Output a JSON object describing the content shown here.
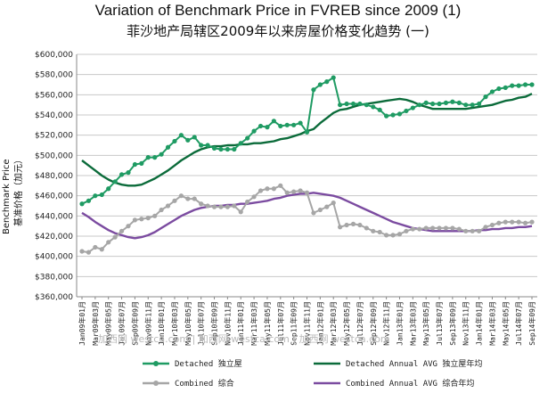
{
  "chart_data": {
    "type": "line",
    "title": "Variation of Benchmark Price in FVREB since 2009 (1)",
    "subtitle": "菲沙地产局辖区2009年以来房屋价格变化趋势 (一)",
    "ylabel_en": "Benchmark Price",
    "ylabel_cn": "基准价格（加元）",
    "ylim": [
      360000,
      600000
    ],
    "y_ticks": [
      "$360,000",
      "$380,000",
      "$400,000",
      "$420,000",
      "$440,000",
      "$460,000",
      "$480,000",
      "$500,000",
      "$520,000",
      "$540,000",
      "$560,000",
      "$580,000",
      "$600,000"
    ],
    "x": [
      "Jan09年01月",
      "Feb09年02月",
      "Mar09年03月",
      "Apr09年04月",
      "May09年05月",
      "Jun09年06月",
      "Jul09年07月",
      "Aug09年08月",
      "Sep09年09月",
      "Oct09年10月",
      "Nov09年11月",
      "Dec09年12月",
      "Jan10年01月",
      "Feb10年02月",
      "Mar10年03月",
      "Apr10年04月",
      "May10年05月",
      "Jun10年06月",
      "Jul10年07月",
      "Aug10年08月",
      "Sep10年09月",
      "Oct10年10月",
      "Nov10年11月",
      "Dec10年12月",
      "Jan11年01月",
      "Feb11年02月",
      "Mar11年03月",
      "Apr11年04月",
      "May11年05月",
      "Jun11年06月",
      "Jul11年07月",
      "Aug11年08月",
      "Sep11年09月",
      "Oct11年10月",
      "Nov11年11月",
      "Dec11年12月",
      "Jan12年01月",
      "Feb12年02月",
      "Mar12年03月",
      "Apr12年04月",
      "May12年05月",
      "Jun12年06月",
      "Jul12年07月",
      "Aug12年08月",
      "Sep12年09月",
      "Oct12年10月",
      "Nov12年11月",
      "Dec12年12月",
      "Jan13年01月",
      "Feb13年02月",
      "Mar13年03月",
      "Apr13年04月",
      "May13年05月",
      "Jun13年06月",
      "Jul13年07月",
      "Aug13年08月",
      "Sep13年09月",
      "Oct13年10月",
      "Nov13年11月",
      "Dec13年12月",
      "Jan14年01月",
      "Feb14年02月",
      "Mar14年03月",
      "Apr14年04月",
      "May14年05月",
      "Jun14年06月",
      "Jul14年07月",
      "Aug14年08月",
      "Sep14年09月"
    ],
    "x_tick_labels": [
      "Jan09年01月",
      "Mar09年03月",
      "May09年05月",
      "Jul09年07月",
      "Sep09年09月",
      "Nov09年11月",
      "Jan10年01月",
      "Mar10年03月",
      "May10年05月",
      "Jul10年07月",
      "Sep10年09月",
      "Nov10年11月",
      "Jan11年01月",
      "Mar11年03月",
      "May11年05月",
      "Jul11年07月",
      "Sep11年09月",
      "Nov11年11月",
      "Jan12年01月",
      "Mar12年03月",
      "May12年05月",
      "Jul12年07月",
      "Sep12年09月",
      "Nov12年11月",
      "Jan13年01月",
      "Mar13年03月",
      "May13年05月",
      "Jul13年07月",
      "Sep13年09月",
      "Nov13年11月",
      "Jan14年01月",
      "Mar14年03月",
      "May14年05月",
      "Jul14年07月",
      "Sep14年09月"
    ],
    "series": [
      {
        "name": "Detached 独立屋",
        "color": "#1f9b63",
        "markers": true,
        "values": [
          452000,
          455000,
          460000,
          461000,
          467000,
          474000,
          481000,
          483000,
          491000,
          492000,
          498000,
          498000,
          501000,
          508000,
          514000,
          520000,
          515000,
          518000,
          510000,
          510000,
          507000,
          506000,
          506000,
          506000,
          512000,
          517000,
          524000,
          529000,
          528000,
          534000,
          529000,
          530000,
          530000,
          532000,
          523000,
          565000,
          570000,
          573000,
          577000,
          550000,
          551000,
          551000,
          551000,
          550000,
          548000,
          545000,
          539000,
          540000,
          541000,
          544000,
          547000,
          550000,
          552000,
          551000,
          551000,
          552000,
          553000,
          552000,
          550000,
          550000,
          551000,
          558000,
          563000,
          566000,
          567000,
          569000,
          569000,
          570000,
          570000
        ]
      },
      {
        "name": "Detached Annual AVG 独立屋年均",
        "color": "#0b6b3a",
        "markers": false,
        "values": [
          495000,
          490000,
          485000,
          480000,
          476000,
          473000,
          471000,
          470000,
          470000,
          471000,
          474000,
          477000,
          481000,
          485000,
          490000,
          495000,
          499000,
          503000,
          506000,
          508000,
          509000,
          509000,
          510000,
          510000,
          511000,
          511000,
          512000,
          512000,
          513000,
          514000,
          516000,
          517000,
          519000,
          521000,
          524000,
          526000,
          532000,
          537000,
          542000,
          545000,
          546000,
          548000,
          550000,
          551000,
          552000,
          553000,
          554000,
          555000,
          556000,
          555000,
          553000,
          550000,
          548000,
          546000,
          546000,
          546000,
          546000,
          546000,
          546000,
          547000,
          548000,
          549000,
          550000,
          552000,
          554000,
          555000,
          557000,
          558000,
          561000
        ]
      },
      {
        "name": "Combined 综合",
        "color": "#a6a6a6",
        "markers": true,
        "values": [
          405000,
          404000,
          409000,
          407000,
          414000,
          419000,
          425000,
          430000,
          436000,
          437000,
          438000,
          440000,
          446000,
          450000,
          455000,
          460000,
          457000,
          457000,
          452000,
          450000,
          449000,
          449000,
          449000,
          450000,
          444000,
          454000,
          459000,
          465000,
          467000,
          467000,
          470000,
          463000,
          464000,
          465000,
          463000,
          443000,
          446000,
          449000,
          453000,
          429000,
          431000,
          432000,
          431000,
          428000,
          425000,
          424000,
          421000,
          421000,
          422000,
          425000,
          427000,
          427000,
          428000,
          428000,
          428000,
          428000,
          428000,
          427000,
          425000,
          425000,
          425000,
          429000,
          431000,
          433000,
          434000,
          434000,
          434000,
          433000,
          434000
        ]
      },
      {
        "name": "Combined Annual AVG 综合年均",
        "color": "#7b4ba0",
        "markers": false,
        "values": [
          443000,
          439000,
          434000,
          430000,
          426000,
          423000,
          421000,
          419000,
          418000,
          419000,
          421000,
          424000,
          428000,
          432000,
          436000,
          440000,
          443000,
          446000,
          448000,
          449000,
          450000,
          450000,
          451000,
          451000,
          452000,
          452000,
          453000,
          454000,
          455000,
          457000,
          458000,
          460000,
          461000,
          462000,
          462000,
          463000,
          462000,
          461000,
          460000,
          458000,
          455000,
          452000,
          449000,
          446000,
          443000,
          440000,
          437000,
          434000,
          432000,
          430000,
          428000,
          427000,
          426000,
          425000,
          425000,
          425000,
          425000,
          425000,
          425000,
          425000,
          426000,
          426000,
          427000,
          427000,
          428000,
          428000,
          429000,
          429000,
          430000
        ]
      }
    ],
    "legend": "bottom",
    "grid": "horizontal",
    "watermark": "加西网 westca.com | 加西网 westca.com | 加西网 westca.com"
  }
}
